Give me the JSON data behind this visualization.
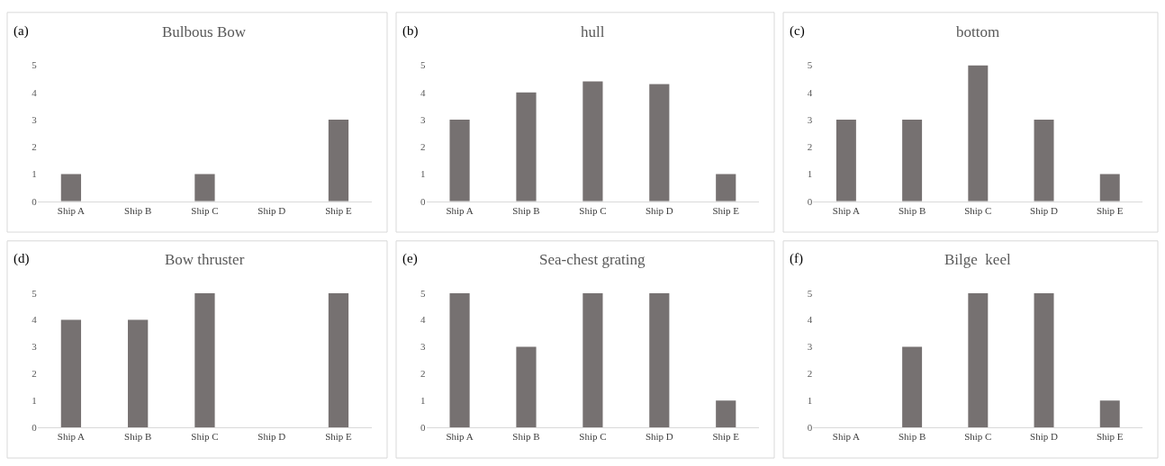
{
  "chart_data": [
    {
      "type": "bar",
      "title": "Bulbous Bow",
      "annotations": [
        "(a)"
      ],
      "categories": [
        "Ship A",
        "Ship B",
        "Ship C",
        "Ship D",
        "Ship E"
      ],
      "values": [
        1,
        0,
        1,
        0,
        3
      ],
      "color": "#767171",
      "ylim": [
        0,
        5
      ],
      "yticks": [
        0,
        1,
        2,
        3,
        4,
        5
      ],
      "grid": false
    },
    {
      "type": "bar",
      "title": "hull",
      "annotations": [
        "(b)"
      ],
      "categories": [
        "Ship A",
        "Ship B",
        "Ship C",
        "Ship D",
        "Ship E"
      ],
      "values": [
        3,
        4,
        4.4,
        4.3,
        1
      ],
      "color": "#767171",
      "ylim": [
        0,
        5
      ],
      "yticks": [
        0,
        1,
        2,
        3,
        4,
        5
      ],
      "grid": false
    },
    {
      "type": "bar",
      "title": "bottom",
      "annotations": [
        "(c)"
      ],
      "categories": [
        "Ship A",
        "Ship B",
        "Ship C",
        "Ship D",
        "Ship E"
      ],
      "values": [
        3,
        3,
        5,
        3,
        1
      ],
      "color": "#767171",
      "ylim": [
        0,
        5
      ],
      "yticks": [
        0,
        1,
        2,
        3,
        4,
        5
      ],
      "grid": false
    },
    {
      "type": "bar",
      "title": "Bow thruster",
      "annotations": [
        "(d)"
      ],
      "categories": [
        "Ship A",
        "Ship B",
        "Ship C",
        "Ship D",
        "Ship E"
      ],
      "values": [
        4,
        4,
        5,
        0,
        5
      ],
      "color": "#767171",
      "ylim": [
        0,
        5
      ],
      "yticks": [
        0,
        1,
        2,
        3,
        4,
        5
      ],
      "grid": false
    },
    {
      "type": "bar",
      "title": "Sea-chest grating",
      "annotations": [
        "(e)"
      ],
      "categories": [
        "Ship A",
        "Ship B",
        "Ship C",
        "Ship D",
        "Ship E"
      ],
      "values": [
        5,
        3,
        5,
        5,
        1
      ],
      "color": "#767171",
      "ylim": [
        0,
        5
      ],
      "yticks": [
        0,
        1,
        2,
        3,
        4,
        5
      ],
      "grid": false
    },
    {
      "type": "bar",
      "title": "Bilge  keel",
      "annotations": [
        "(f)"
      ],
      "categories": [
        "Ship A",
        "Ship B",
        "Ship C",
        "Ship D",
        "Ship E"
      ],
      "values": [
        0,
        3,
        5,
        5,
        1
      ],
      "color": "#767171",
      "ylim": [
        0,
        5
      ],
      "yticks": [
        0,
        1,
        2,
        3,
        4,
        5
      ],
      "grid": false
    }
  ]
}
